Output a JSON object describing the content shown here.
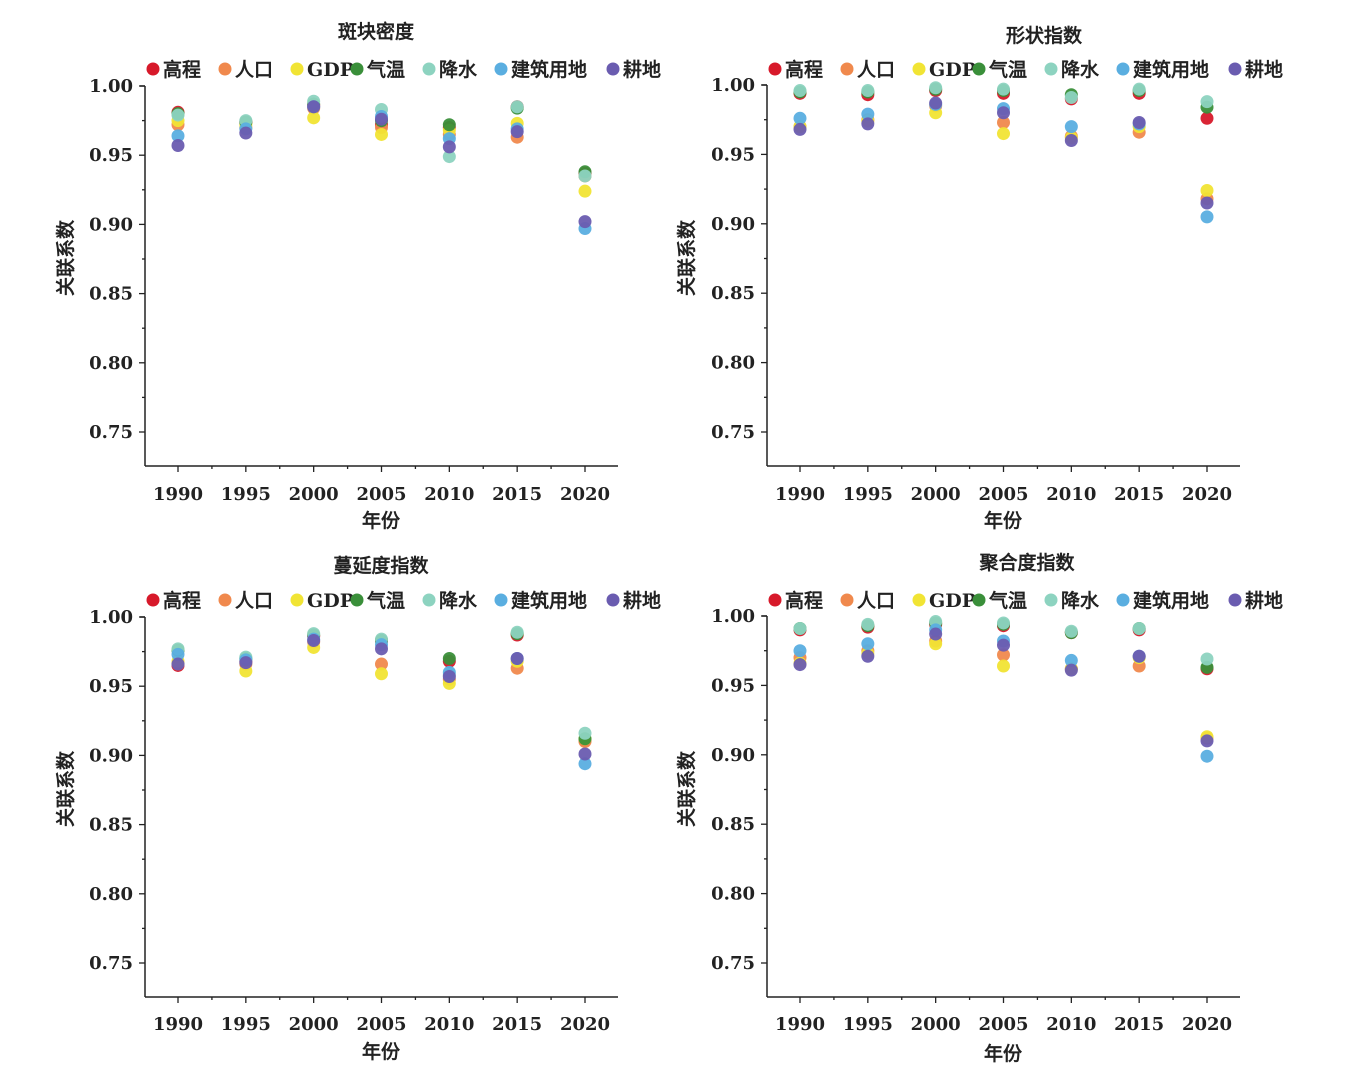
{
  "legend": {
    "series": [
      {
        "name": "高程",
        "color": "#d7192a"
      },
      {
        "name": "人口",
        "color": "#f0894d"
      },
      {
        "name": "GDP",
        "color": "#f1e434"
      },
      {
        "name": "气温",
        "color": "#3a8f3a"
      },
      {
        "name": "降水",
        "color": "#8dd3c0"
      },
      {
        "name": "建筑用地",
        "color": "#5aaee0"
      },
      {
        "name": "耕地",
        "color": "#6a5cb0"
      }
    ]
  },
  "chart_data": [
    {
      "type": "scatter",
      "title": "斑块密度",
      "xlabel": "年份",
      "ylabel": "关联系数",
      "x": [
        1990,
        1995,
        2000,
        2005,
        2010,
        2015,
        2020
      ],
      "x_ticks": [
        "1990",
        "1995",
        "2000",
        "2005",
        "2010",
        "2015",
        "2020"
      ],
      "y_ticks": [
        "0.75",
        "0.80",
        "0.85",
        "0.90",
        "0.95",
        "1.00"
      ],
      "ylim": [
        0.725,
        1.0
      ],
      "legend_position": "top",
      "series": [
        {
          "name": "高程",
          "values": [
            0.981,
            0.974,
            0.986,
            0.972,
            0.97,
            0.985,
            0.937
          ]
        },
        {
          "name": "人口",
          "values": [
            0.972,
            0.97,
            0.984,
            0.97,
            0.965,
            0.963,
            0.935
          ]
        },
        {
          "name": "GDP",
          "values": [
            0.975,
            0.972,
            0.977,
            0.965,
            0.968,
            0.973,
            0.924
          ]
        },
        {
          "name": "气温",
          "values": [
            0.98,
            0.974,
            0.987,
            0.975,
            0.972,
            0.984,
            0.938
          ]
        },
        {
          "name": "降水",
          "values": [
            0.979,
            0.975,
            0.989,
            0.983,
            0.949,
            0.985,
            0.935
          ]
        },
        {
          "name": "建筑用地",
          "values": [
            0.964,
            0.969,
            0.985,
            0.978,
            0.962,
            0.969,
            0.897
          ]
        },
        {
          "name": "耕地",
          "values": [
            0.957,
            0.966,
            0.985,
            0.976,
            0.956,
            0.967,
            0.902
          ]
        }
      ]
    },
    {
      "type": "scatter",
      "title": "形状指数",
      "xlabel": "年份",
      "ylabel": "关联系数",
      "x": [
        1990,
        1995,
        2000,
        2005,
        2010,
        2015,
        2020
      ],
      "x_ticks": [
        "1990",
        "1995",
        "2000",
        "2005",
        "2010",
        "2015",
        "2020"
      ],
      "y_ticks": [
        "0.75",
        "0.80",
        "0.85",
        "0.90",
        "0.95",
        "1.00"
      ],
      "ylim": [
        0.725,
        1.0
      ],
      "legend_position": "top",
      "series": [
        {
          "name": "高程",
          "values": [
            0.994,
            0.993,
            0.996,
            0.994,
            0.99,
            0.994,
            0.976
          ]
        },
        {
          "name": "人口",
          "values": [
            0.97,
            0.975,
            0.985,
            0.973,
            0.963,
            0.966,
            0.918
          ]
        },
        {
          "name": "GDP",
          "values": [
            0.97,
            0.974,
            0.98,
            0.965,
            0.962,
            0.97,
            0.924
          ]
        },
        {
          "name": "气温",
          "values": [
            0.995,
            0.995,
            0.997,
            0.996,
            0.993,
            0.996,
            0.984
          ]
        },
        {
          "name": "降水",
          "values": [
            0.996,
            0.996,
            0.998,
            0.997,
            0.991,
            0.997,
            0.988
          ]
        },
        {
          "name": "建筑用地",
          "values": [
            0.976,
            0.979,
            0.986,
            0.983,
            0.97,
            0.972,
            0.905
          ]
        },
        {
          "name": "耕地",
          "values": [
            0.968,
            0.972,
            0.987,
            0.98,
            0.96,
            0.973,
            0.915
          ]
        }
      ]
    },
    {
      "type": "scatter",
      "title": "蔓延度指数",
      "xlabel": "年份",
      "ylabel": "关联系数",
      "x": [
        1990,
        1995,
        2000,
        2005,
        2010,
        2015,
        2020
      ],
      "x_ticks": [
        "1990",
        "1995",
        "2000",
        "2005",
        "2010",
        "2015",
        "2020"
      ],
      "y_ticks": [
        "0.75",
        "0.80",
        "0.85",
        "0.90",
        "0.95",
        "1.00"
      ],
      "ylim": [
        0.725,
        1.0
      ],
      "legend_position": "top",
      "series": [
        {
          "name": "高程",
          "values": [
            0.965,
            0.968,
            0.986,
            0.983,
            0.968,
            0.987,
            0.911
          ]
        },
        {
          "name": "人口",
          "values": [
            0.966,
            0.966,
            0.982,
            0.966,
            0.955,
            0.963,
            0.91
          ]
        },
        {
          "name": "GDP",
          "values": [
            0.968,
            0.961,
            0.978,
            0.959,
            0.952,
            0.968,
            0.912
          ]
        },
        {
          "name": "气温",
          "values": [
            0.976,
            0.97,
            0.987,
            0.983,
            0.97,
            0.988,
            0.912
          ]
        },
        {
          "name": "降水",
          "values": [
            0.977,
            0.971,
            0.988,
            0.984,
            0.958,
            0.989,
            0.916
          ]
        },
        {
          "name": "建筑用地",
          "values": [
            0.973,
            0.969,
            0.984,
            0.98,
            0.96,
            0.97,
            0.894
          ]
        },
        {
          "name": "耕地",
          "values": [
            0.966,
            0.967,
            0.983,
            0.977,
            0.957,
            0.97,
            0.901
          ]
        }
      ]
    },
    {
      "type": "scatter",
      "title": "聚合度指数",
      "xlabel": "年份",
      "ylabel": "关联系数",
      "x": [
        1990,
        1995,
        2000,
        2005,
        2010,
        2015,
        2020
      ],
      "x_ticks": [
        "1990",
        "1995",
        "2000",
        "2005",
        "2010",
        "2015",
        "2020"
      ],
      "y_ticks": [
        "0.75",
        "0.80",
        "0.85",
        "0.90",
        "0.95",
        "1.00"
      ],
      "ylim": [
        0.725,
        1.0
      ],
      "legend_position": "top",
      "series": [
        {
          "name": "高程",
          "values": [
            0.99,
            0.992,
            0.994,
            0.993,
            0.988,
            0.99,
            0.962
          ]
        },
        {
          "name": "人口",
          "values": [
            0.97,
            0.975,
            0.982,
            0.972,
            0.962,
            0.964,
            0.912
          ]
        },
        {
          "name": "GDP",
          "values": [
            0.966,
            0.973,
            0.98,
            0.964,
            0.962,
            0.97,
            0.913
          ]
        },
        {
          "name": "气温",
          "values": [
            0.991,
            0.993,
            0.995,
            0.994,
            0.988,
            0.991,
            0.963
          ]
        },
        {
          "name": "降水",
          "values": [
            0.991,
            0.994,
            0.996,
            0.995,
            0.989,
            0.991,
            0.969
          ]
        },
        {
          "name": "建筑用地",
          "values": [
            0.975,
            0.98,
            0.99,
            0.982,
            0.968,
            0.971,
            0.899
          ]
        },
        {
          "name": "耕地",
          "values": [
            0.965,
            0.971,
            0.987,
            0.979,
            0.961,
            0.971,
            0.91
          ]
        }
      ]
    }
  ]
}
